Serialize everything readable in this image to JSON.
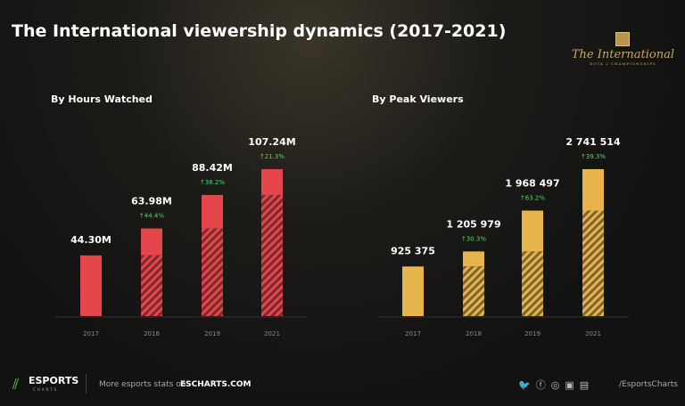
{
  "title": "The International viewership dynamics (2017-2021)",
  "logo": {
    "name": "The International",
    "sub": "DOTA 2 CHAMPIONSHIPS"
  },
  "chart_data": [
    {
      "type": "bar",
      "title": "By Hours Watched",
      "categories": [
        "2017",
        "2018",
        "2019",
        "2021"
      ],
      "values": [
        44.3,
        63.98,
        88.42,
        107.24
      ],
      "labels": [
        "44.30M",
        "63.98M",
        "88.42M",
        "107.24M"
      ],
      "growth": [
        "",
        "↑44.4%",
        "↑38.2%",
        "↑21.3%"
      ],
      "color": "#e5464b",
      "ylim": [
        0,
        107.24
      ]
    },
    {
      "type": "bar",
      "title": "By Peak Viewers",
      "categories": [
        "2017",
        "2018",
        "2019",
        "2021"
      ],
      "values": [
        925375,
        1205979,
        1968497,
        2741514
      ],
      "labels": [
        "925 375",
        "1 205 979",
        "1 968 497",
        "2 741 514"
      ],
      "growth": [
        "",
        "↑30.3%",
        "↑63.2%",
        "↑39.3%"
      ],
      "color": "#e8b54c",
      "ylim": [
        0,
        2741514
      ]
    }
  ],
  "colors": {
    "growth": "#4cd964"
  },
  "footer": {
    "brand": "ESPORTS",
    "brand_sub": "CHARTS",
    "more": "More esports stats on",
    "site": "ESCHARTS.COM",
    "handle": "/EsportsCharts"
  }
}
